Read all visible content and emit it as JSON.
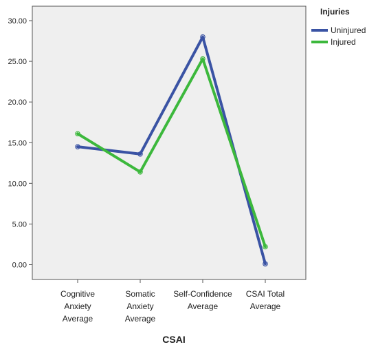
{
  "chart_data": {
    "type": "line",
    "title": "",
    "xlabel": "CSAI",
    "ylabel": "",
    "categories": [
      [
        "Cognitive",
        "Anxiety",
        "Average"
      ],
      [
        "Somatic",
        "Anxiety",
        "Average"
      ],
      [
        "Self-Confidence",
        "Average"
      ],
      [
        "CSAI Total",
        "Average"
      ]
    ],
    "ylim": [
      0,
      30
    ],
    "yticks": [
      "0.00",
      "5.00",
      "10.00",
      "15.00",
      "20.00",
      "25.00",
      "30.00"
    ],
    "grid": false,
    "legend_title": "Injuries",
    "legend_position": "top-right",
    "series": [
      {
        "name": "Uninjured",
        "color": "#3a53a4",
        "values": [
          14.5,
          13.6,
          28.0,
          0.1
        ]
      },
      {
        "name": "Injured",
        "color": "#3cb83c",
        "values": [
          16.1,
          11.4,
          25.3,
          2.2
        ]
      }
    ],
    "plot_background": "#efefef"
  }
}
